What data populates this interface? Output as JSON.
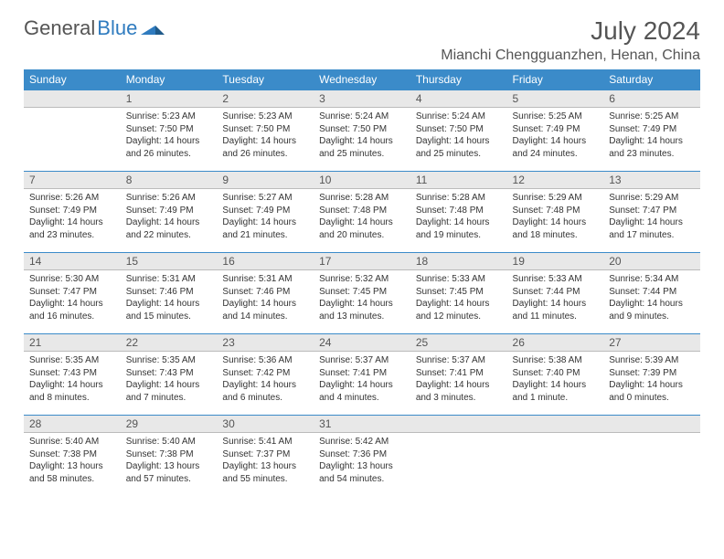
{
  "brand": {
    "part1": "General",
    "part2": "Blue"
  },
  "title": "July 2024",
  "location": "Mianchi Chengguanzhen, Henan, China",
  "weekdays": [
    "Sunday",
    "Monday",
    "Tuesday",
    "Wednesday",
    "Thursday",
    "Friday",
    "Saturday"
  ],
  "colors": {
    "header_bg": "#3b8bc9",
    "header_text": "#ffffff",
    "daynum_bg": "#e8e8e8",
    "rule": "#3b8bc9",
    "body_text": "#333333",
    "title_text": "#555555"
  },
  "weeks": [
    [
      {
        "n": "",
        "sr": "",
        "ss": "",
        "dl": ""
      },
      {
        "n": "1",
        "sr": "Sunrise: 5:23 AM",
        "ss": "Sunset: 7:50 PM",
        "dl": "Daylight: 14 hours and 26 minutes."
      },
      {
        "n": "2",
        "sr": "Sunrise: 5:23 AM",
        "ss": "Sunset: 7:50 PM",
        "dl": "Daylight: 14 hours and 26 minutes."
      },
      {
        "n": "3",
        "sr": "Sunrise: 5:24 AM",
        "ss": "Sunset: 7:50 PM",
        "dl": "Daylight: 14 hours and 25 minutes."
      },
      {
        "n": "4",
        "sr": "Sunrise: 5:24 AM",
        "ss": "Sunset: 7:50 PM",
        "dl": "Daylight: 14 hours and 25 minutes."
      },
      {
        "n": "5",
        "sr": "Sunrise: 5:25 AM",
        "ss": "Sunset: 7:49 PM",
        "dl": "Daylight: 14 hours and 24 minutes."
      },
      {
        "n": "6",
        "sr": "Sunrise: 5:25 AM",
        "ss": "Sunset: 7:49 PM",
        "dl": "Daylight: 14 hours and 23 minutes."
      }
    ],
    [
      {
        "n": "7",
        "sr": "Sunrise: 5:26 AM",
        "ss": "Sunset: 7:49 PM",
        "dl": "Daylight: 14 hours and 23 minutes."
      },
      {
        "n": "8",
        "sr": "Sunrise: 5:26 AM",
        "ss": "Sunset: 7:49 PM",
        "dl": "Daylight: 14 hours and 22 minutes."
      },
      {
        "n": "9",
        "sr": "Sunrise: 5:27 AM",
        "ss": "Sunset: 7:49 PM",
        "dl": "Daylight: 14 hours and 21 minutes."
      },
      {
        "n": "10",
        "sr": "Sunrise: 5:28 AM",
        "ss": "Sunset: 7:48 PM",
        "dl": "Daylight: 14 hours and 20 minutes."
      },
      {
        "n": "11",
        "sr": "Sunrise: 5:28 AM",
        "ss": "Sunset: 7:48 PM",
        "dl": "Daylight: 14 hours and 19 minutes."
      },
      {
        "n": "12",
        "sr": "Sunrise: 5:29 AM",
        "ss": "Sunset: 7:48 PM",
        "dl": "Daylight: 14 hours and 18 minutes."
      },
      {
        "n": "13",
        "sr": "Sunrise: 5:29 AM",
        "ss": "Sunset: 7:47 PM",
        "dl": "Daylight: 14 hours and 17 minutes."
      }
    ],
    [
      {
        "n": "14",
        "sr": "Sunrise: 5:30 AM",
        "ss": "Sunset: 7:47 PM",
        "dl": "Daylight: 14 hours and 16 minutes."
      },
      {
        "n": "15",
        "sr": "Sunrise: 5:31 AM",
        "ss": "Sunset: 7:46 PM",
        "dl": "Daylight: 14 hours and 15 minutes."
      },
      {
        "n": "16",
        "sr": "Sunrise: 5:31 AM",
        "ss": "Sunset: 7:46 PM",
        "dl": "Daylight: 14 hours and 14 minutes."
      },
      {
        "n": "17",
        "sr": "Sunrise: 5:32 AM",
        "ss": "Sunset: 7:45 PM",
        "dl": "Daylight: 14 hours and 13 minutes."
      },
      {
        "n": "18",
        "sr": "Sunrise: 5:33 AM",
        "ss": "Sunset: 7:45 PM",
        "dl": "Daylight: 14 hours and 12 minutes."
      },
      {
        "n": "19",
        "sr": "Sunrise: 5:33 AM",
        "ss": "Sunset: 7:44 PM",
        "dl": "Daylight: 14 hours and 11 minutes."
      },
      {
        "n": "20",
        "sr": "Sunrise: 5:34 AM",
        "ss": "Sunset: 7:44 PM",
        "dl": "Daylight: 14 hours and 9 minutes."
      }
    ],
    [
      {
        "n": "21",
        "sr": "Sunrise: 5:35 AM",
        "ss": "Sunset: 7:43 PM",
        "dl": "Daylight: 14 hours and 8 minutes."
      },
      {
        "n": "22",
        "sr": "Sunrise: 5:35 AM",
        "ss": "Sunset: 7:43 PM",
        "dl": "Daylight: 14 hours and 7 minutes."
      },
      {
        "n": "23",
        "sr": "Sunrise: 5:36 AM",
        "ss": "Sunset: 7:42 PM",
        "dl": "Daylight: 14 hours and 6 minutes."
      },
      {
        "n": "24",
        "sr": "Sunrise: 5:37 AM",
        "ss": "Sunset: 7:41 PM",
        "dl": "Daylight: 14 hours and 4 minutes."
      },
      {
        "n": "25",
        "sr": "Sunrise: 5:37 AM",
        "ss": "Sunset: 7:41 PM",
        "dl": "Daylight: 14 hours and 3 minutes."
      },
      {
        "n": "26",
        "sr": "Sunrise: 5:38 AM",
        "ss": "Sunset: 7:40 PM",
        "dl": "Daylight: 14 hours and 1 minute."
      },
      {
        "n": "27",
        "sr": "Sunrise: 5:39 AM",
        "ss": "Sunset: 7:39 PM",
        "dl": "Daylight: 14 hours and 0 minutes."
      }
    ],
    [
      {
        "n": "28",
        "sr": "Sunrise: 5:40 AM",
        "ss": "Sunset: 7:38 PM",
        "dl": "Daylight: 13 hours and 58 minutes."
      },
      {
        "n": "29",
        "sr": "Sunrise: 5:40 AM",
        "ss": "Sunset: 7:38 PM",
        "dl": "Daylight: 13 hours and 57 minutes."
      },
      {
        "n": "30",
        "sr": "Sunrise: 5:41 AM",
        "ss": "Sunset: 7:37 PM",
        "dl": "Daylight: 13 hours and 55 minutes."
      },
      {
        "n": "31",
        "sr": "Sunrise: 5:42 AM",
        "ss": "Sunset: 7:36 PM",
        "dl": "Daylight: 13 hours and 54 minutes."
      },
      {
        "n": "",
        "sr": "",
        "ss": "",
        "dl": ""
      },
      {
        "n": "",
        "sr": "",
        "ss": "",
        "dl": ""
      },
      {
        "n": "",
        "sr": "",
        "ss": "",
        "dl": ""
      }
    ]
  ]
}
